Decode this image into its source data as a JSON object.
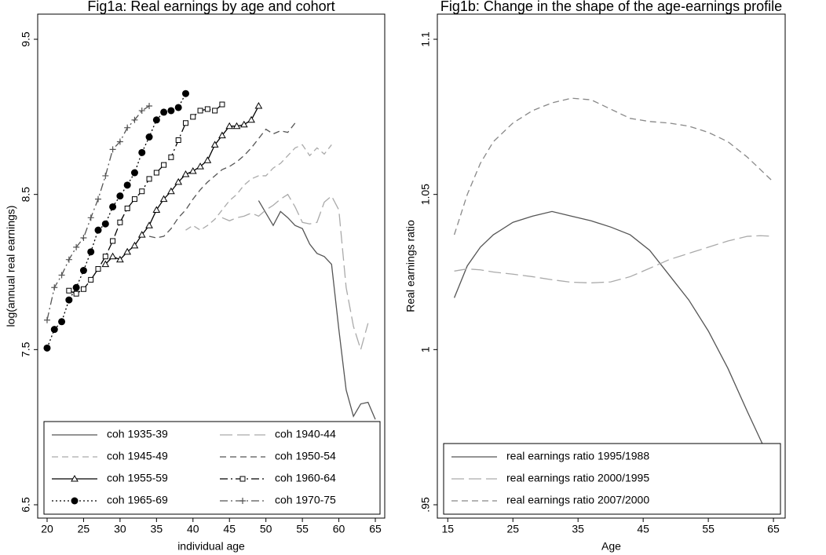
{
  "chart_data": [
    {
      "type": "line",
      "title": "Fig1a: Real earnings by age and cohort",
      "xlabel": "individual age",
      "ylabel": "log(annual real earnings)",
      "xlim": [
        18.71,
        66.29
      ],
      "ylim": [
        6.414,
        9.662
      ],
      "xticks": [
        20,
        25,
        30,
        35,
        40,
        45,
        50,
        55,
        60,
        65
      ],
      "yticks": [
        6.5,
        7.5,
        8.5,
        9.5
      ],
      "legend": "lower",
      "legend_columns": 2,
      "series": [
        {
          "name": "coh 1935-39",
          "color": "#555555",
          "dash": "solid",
          "marker": "none",
          "x": [
            49,
            50,
            51,
            52,
            53,
            54,
            55,
            56,
            57,
            58,
            59,
            60,
            61,
            62,
            63,
            64,
            65
          ],
          "values": [
            8.46,
            8.38,
            8.3,
            8.39,
            8.35,
            8.3,
            8.28,
            8.18,
            8.12,
            8.1,
            8.05,
            7.63,
            7.24,
            7.07,
            7.15,
            7.16,
            7.05
          ]
        },
        {
          "name": "coh 1940-44",
          "color": "#aaaaaa",
          "dash": "long-dash",
          "marker": "none",
          "x": [
            44,
            45,
            46,
            47,
            48,
            49,
            50,
            51,
            52,
            53,
            54,
            55,
            56,
            57,
            58,
            59,
            60,
            61,
            62,
            63,
            64
          ],
          "values": [
            8.35,
            8.33,
            8.35,
            8.36,
            8.38,
            8.36,
            8.4,
            8.43,
            8.47,
            8.5,
            8.42,
            8.32,
            8.31,
            8.32,
            8.45,
            8.49,
            8.4,
            7.9,
            7.65,
            7.5,
            7.67
          ]
        },
        {
          "name": "coh 1945-49",
          "color": "#aaaaaa",
          "dash": "dash",
          "marker": "none",
          "x": [
            39,
            40,
            41,
            42,
            43,
            44,
            45,
            46,
            47,
            48,
            49,
            50,
            51,
            52,
            53,
            54,
            55,
            56,
            57,
            58,
            59
          ],
          "values": [
            8.27,
            8.3,
            8.27,
            8.3,
            8.34,
            8.4,
            8.46,
            8.5,
            8.56,
            8.6,
            8.62,
            8.62,
            8.67,
            8.7,
            8.75,
            8.8,
            8.82,
            8.75,
            8.8,
            8.76,
            8.82
          ]
        },
        {
          "name": "coh 1950-54",
          "color": "#555555",
          "dash": "dash",
          "marker": "none",
          "x": [
            34,
            35,
            36,
            37,
            38,
            39,
            40,
            41,
            42,
            43,
            44,
            45,
            46,
            47,
            48,
            49,
            50,
            51,
            52,
            53,
            54
          ],
          "values": [
            8.23,
            8.22,
            8.23,
            8.28,
            8.35,
            8.4,
            8.47,
            8.53,
            8.58,
            8.62,
            8.66,
            8.68,
            8.71,
            8.75,
            8.8,
            8.86,
            8.92,
            8.89,
            8.91,
            8.9,
            8.96
          ]
        },
        {
          "name": "coh 1955-59",
          "color": "#000000",
          "dash": "solid",
          "marker": "triangle",
          "x": [
            28,
            29,
            30,
            31,
            32,
            33,
            34,
            35,
            36,
            37,
            38,
            39,
            40,
            41,
            42,
            43,
            44,
            45,
            46,
            47,
            48,
            49
          ],
          "values": [
            8.05,
            8.1,
            8.08,
            8.13,
            8.17,
            8.24,
            8.3,
            8.4,
            8.47,
            8.52,
            8.58,
            8.63,
            8.65,
            8.68,
            8.72,
            8.82,
            8.88,
            8.94,
            8.94,
            8.95,
            8.98,
            9.07
          ]
        },
        {
          "name": "coh 1960-64",
          "color": "#000000",
          "dash": "dash-dot",
          "marker": "square",
          "x": [
            23,
            24,
            25,
            26,
            27,
            28,
            29,
            30,
            31,
            32,
            33,
            34,
            35,
            36,
            37,
            38,
            39,
            40,
            41,
            42,
            43,
            44
          ],
          "values": [
            7.88,
            7.86,
            7.89,
            7.95,
            8.02,
            8.1,
            8.2,
            8.32,
            8.41,
            8.47,
            8.52,
            8.6,
            8.64,
            8.69,
            8.74,
            8.85,
            8.96,
            9,
            9.04,
            9.05,
            9.04,
            9.08
          ]
        },
        {
          "name": "coh 1965-69",
          "color": "#000000",
          "dash": "dot",
          "marker": "circle",
          "x": [
            20,
            21,
            22,
            23,
            24,
            25,
            26,
            27,
            28,
            29,
            30,
            31,
            32,
            33,
            34,
            35,
            36,
            37,
            38,
            39
          ],
          "values": [
            7.51,
            7.63,
            7.68,
            7.82,
            7.9,
            8.01,
            8.13,
            8.27,
            8.31,
            8.42,
            8.49,
            8.56,
            8.64,
            8.77,
            8.87,
            8.98,
            9.03,
            9.04,
            9.06,
            9.15
          ]
        },
        {
          "name": "coh 1970-75",
          "color": "#555555",
          "dash": "dash-dot",
          "marker": "plus",
          "x": [
            20,
            21,
            22,
            23,
            24,
            25,
            26,
            27,
            28,
            29,
            30,
            31,
            32,
            33,
            34
          ],
          "values": [
            7.69,
            7.9,
            7.98,
            8.08,
            8.16,
            8.22,
            8.35,
            8.47,
            8.62,
            8.79,
            8.84,
            8.93,
            8.98,
            9.04,
            9.07
          ]
        }
      ]
    },
    {
      "type": "line",
      "title": "Fig1b: Change in the shape of the age-earnings profile",
      "xlabel": "Age",
      "ylabel": "Real earnings ratio",
      "xlim": [
        13.4,
        66.8
      ],
      "ylim": [
        0.9457,
        1.1081
      ],
      "xticks": [
        15,
        25,
        35,
        45,
        55,
        65
      ],
      "yticks": [
        {
          "value": 0.95,
          "label": ".95"
        },
        1,
        1.05,
        1.1
      ],
      "legend": "lower",
      "legend_columns": 1,
      "x": [
        16,
        18,
        20,
        22,
        25,
        28,
        31,
        34,
        37,
        40,
        43,
        46,
        49,
        52,
        55,
        58,
        61,
        63,
        65
      ],
      "series": [
        {
          "name": "real earnings ratio 1995/1988",
          "color": "#555555",
          "dash": "solid",
          "marker": "none",
          "values": [
            1.0167,
            1.027,
            1.033,
            1.037,
            1.041,
            1.043,
            1.0445,
            1.043,
            1.0415,
            1.0395,
            1.037,
            1.032,
            1.024,
            1.016,
            1.006,
            0.994,
            0.98,
            0.971,
            0.962
          ]
        },
        {
          "name": "real earnings ratio 2000/1995",
          "color": "#aaaaaa",
          "dash": "long-dash",
          "marker": "none",
          "values": [
            1.0253,
            1.026,
            1.0257,
            1.025,
            1.0243,
            1.0235,
            1.0225,
            1.0217,
            1.0215,
            1.0218,
            1.0235,
            1.0262,
            1.029,
            1.031,
            1.033,
            1.035,
            1.0365,
            1.0367,
            1.0365
          ]
        },
        {
          "name": "real earnings ratio 2007/2000",
          "color": "#888888",
          "dash": "dash",
          "marker": "none",
          "values": [
            1.037,
            1.05,
            1.06,
            1.067,
            1.073,
            1.077,
            1.0795,
            1.081,
            1.0805,
            1.0775,
            1.0745,
            1.0735,
            1.073,
            1.072,
            1.07,
            1.067,
            1.062,
            1.058,
            1.054
          ]
        }
      ]
    }
  ]
}
